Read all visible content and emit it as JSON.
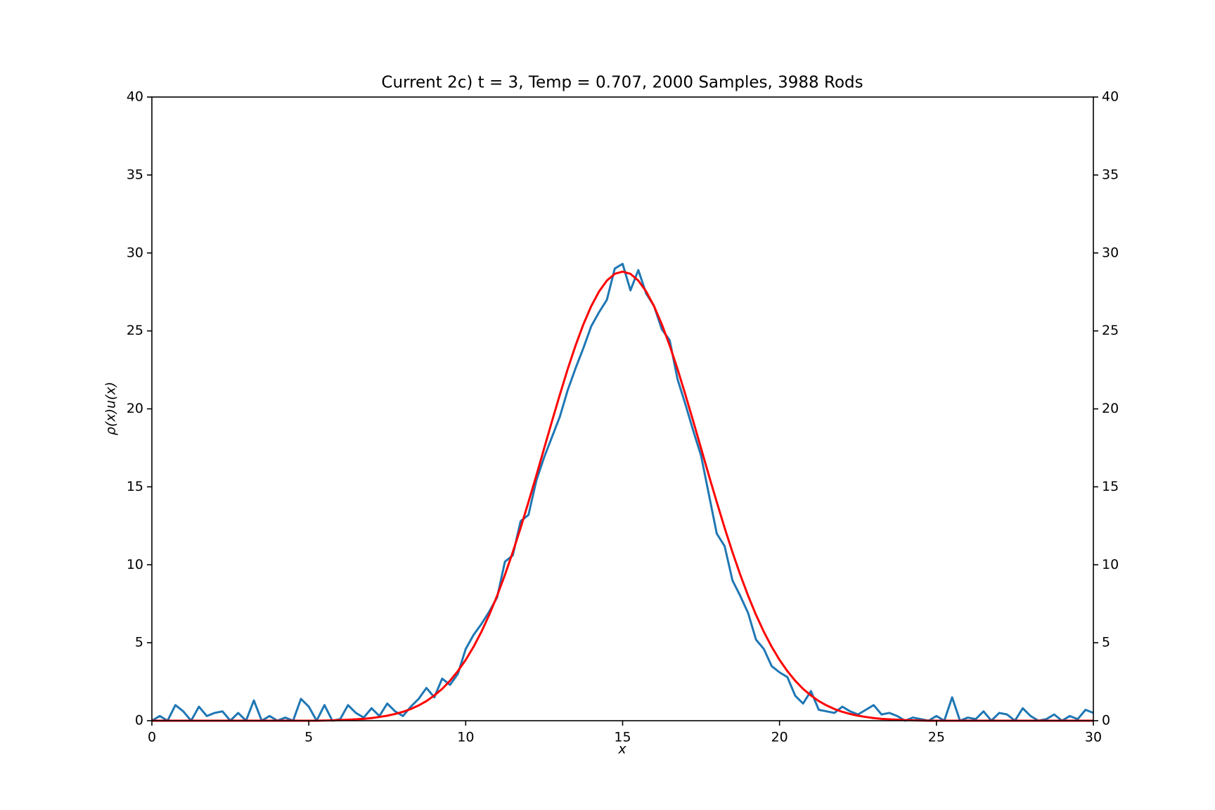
{
  "chart_data": {
    "type": "line",
    "title": "Current 2c) t = 3, Temp = 0.707, 2000 Samples, 3988 Rods",
    "xlabel": "x",
    "ylabel": "ρ(x)u(x)",
    "x": [
      0,
      0.25,
      0.5,
      0.75,
      1,
      1.25,
      1.5,
      1.75,
      2,
      2.25,
      2.5,
      2.75,
      3,
      3.25,
      3.5,
      3.75,
      4,
      4.25,
      4.5,
      4.75,
      5,
      5.25,
      5.5,
      5.75,
      6,
      6.25,
      6.5,
      6.75,
      7,
      7.25,
      7.5,
      7.75,
      8,
      8.25,
      8.5,
      8.75,
      9,
      9.25,
      9.5,
      9.75,
      10,
      10.25,
      10.5,
      10.75,
      11,
      11.25,
      11.5,
      11.75,
      12,
      12.25,
      12.5,
      12.75,
      13,
      13.25,
      13.5,
      13.75,
      14,
      14.25,
      14.5,
      14.75,
      15,
      15.25,
      15.5,
      15.75,
      16,
      16.25,
      16.5,
      16.75,
      17,
      17.25,
      17.5,
      17.75,
      18,
      18.25,
      18.5,
      18.75,
      19,
      19.25,
      19.5,
      19.75,
      20,
      20.25,
      20.5,
      20.75,
      21,
      21.25,
      21.5,
      21.75,
      22,
      22.25,
      22.5,
      22.75,
      23,
      23.25,
      23.5,
      23.75,
      24,
      24.25,
      24.5,
      24.75,
      25,
      25.25,
      25.5,
      25.75,
      26,
      26.25,
      26.5,
      26.75,
      27,
      27.25,
      27.5,
      27.75,
      28,
      28.25,
      28.5,
      28.75,
      29,
      29.25,
      29.5,
      29.75,
      30
    ],
    "series": [
      {
        "color": "#1f77b4",
        "values": [
          0,
          0.3,
          0,
          1.0,
          0.6,
          0,
          0.9,
          0.3,
          0.5,
          0.6,
          0,
          0.5,
          0,
          1.3,
          0,
          0.3,
          0,
          0.2,
          0,
          1.4,
          0.9,
          0,
          1.0,
          0,
          0.1,
          1.0,
          0.5,
          0.2,
          0.8,
          0.3,
          1.1,
          0.6,
          0.3,
          0.9,
          1.4,
          2.1,
          1.5,
          2.7,
          2.3,
          3.0,
          4.6,
          5.5,
          6.2,
          7.0,
          7.9,
          10.2,
          10.6,
          12.8,
          13.2,
          15.4,
          16.9,
          18.2,
          19.5,
          21.2,
          22.6,
          23.9,
          25.3,
          26.2,
          27.0,
          29.0,
          29.3,
          27.6,
          28.9,
          27.4,
          26.6,
          25.1,
          24.4,
          21.9,
          20.3,
          18.6,
          17.0,
          14.5,
          12.0,
          11.2,
          9.0,
          8.0,
          6.9,
          5.2,
          4.6,
          3.5,
          3.1,
          2.8,
          1.6,
          1.1,
          1.9,
          0.7,
          0.6,
          0.5,
          0.9,
          0.6,
          0.4,
          0.7,
          1.0,
          0.4,
          0.5,
          0.3,
          0,
          0.2,
          0.1,
          0,
          0.3,
          0,
          1.5,
          0,
          0.2,
          0.1,
          0.6,
          0,
          0.5,
          0.4,
          0,
          0.8,
          0.3,
          0,
          0.1,
          0.4,
          0,
          0.3,
          0.1,
          0.7,
          0.5
        ]
      },
      {
        "color": "#ff0000",
        "values": [
          0,
          0,
          0,
          0,
          0,
          0,
          0,
          0,
          0,
          0,
          0,
          0,
          0,
          0,
          0,
          0,
          0,
          0,
          0,
          0,
          0,
          0,
          0.01,
          0.02,
          0.04,
          0.06,
          0.09,
          0.12,
          0.17,
          0.24,
          0.32,
          0.43,
          0.57,
          0.75,
          0.98,
          1.26,
          1.62,
          2.04,
          2.56,
          3.18,
          3.9,
          4.74,
          5.7,
          6.79,
          8.01,
          9.35,
          10.81,
          12.37,
          14.02,
          15.72,
          17.47,
          19.21,
          20.91,
          22.55,
          24.06,
          25.42,
          26.59,
          27.53,
          28.23,
          28.66,
          28.8,
          28.66,
          28.23,
          27.53,
          26.59,
          25.42,
          24.06,
          22.55,
          20.91,
          19.21,
          17.47,
          15.72,
          14.02,
          12.37,
          10.81,
          9.35,
          8.01,
          6.79,
          5.7,
          4.74,
          3.9,
          3.18,
          2.56,
          2.04,
          1.62,
          1.26,
          0.98,
          0.75,
          0.57,
          0.43,
          0.32,
          0.24,
          0.17,
          0.12,
          0.09,
          0.06,
          0.04,
          0.02,
          0.01,
          0,
          0,
          0,
          0,
          0,
          0,
          0,
          0,
          0,
          0,
          0,
          0,
          0,
          0,
          0,
          0,
          0,
          0,
          0,
          0,
          0,
          0
        ]
      }
    ],
    "xlim": [
      0,
      30
    ],
    "xticks": [
      0,
      5,
      10,
      15,
      20,
      25,
      30
    ],
    "ylim": [
      0,
      40
    ],
    "yticks": [
      0,
      5,
      10,
      15,
      20,
      25,
      30,
      35,
      40
    ],
    "y2lim": [
      0,
      40
    ],
    "y2ticks": [
      0,
      5,
      10,
      15,
      20,
      25,
      30,
      35,
      40
    ],
    "grid": false
  }
}
